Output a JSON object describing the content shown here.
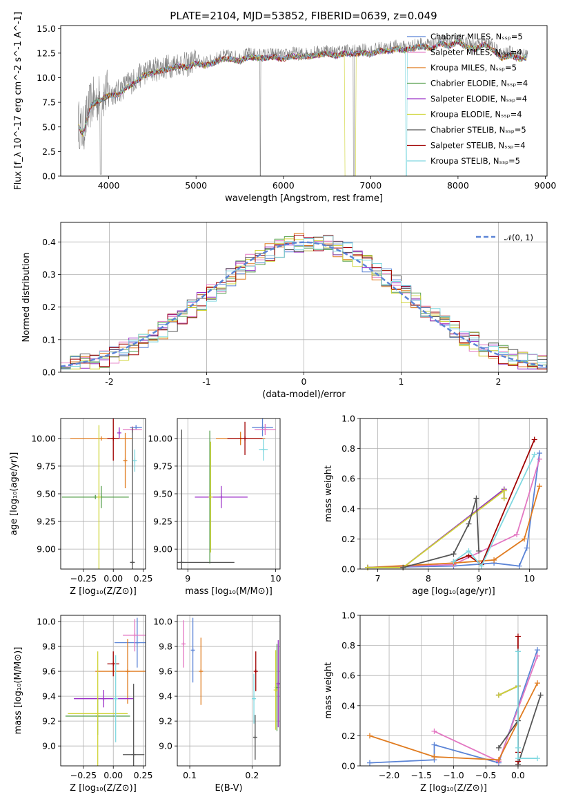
{
  "figure": {
    "title": "PLATE=2104, MJD=53852, FIBERID=0639, z=0.049"
  },
  "chart_data": [
    {
      "id": "spectrum",
      "type": "line",
      "xlabel": "wavelength [Angstrom, rest frame]",
      "ylabel": "Flux [f_λ 10^-17 erg cm^-2 s^-1 A^-1]",
      "xlim": [
        3450,
        9020
      ],
      "ylim": [
        0,
        15.3
      ],
      "xticks": [
        4000,
        5000,
        6000,
        7000,
        8000,
        9000
      ],
      "yticks": [
        0.0,
        2.5,
        5.0,
        7.5,
        10.0,
        12.5,
        15.0
      ],
      "ytick_labels": [
        "0.0",
        "2.5",
        "5.0",
        "7.5",
        "10.0",
        "12.5",
        "15.0"
      ],
      "grid": false,
      "legend_position": "right",
      "data_curve": {
        "description": "observed spectrum (grey)",
        "x": [
          3650,
          3700,
          3800,
          3900,
          4000,
          4100,
          4200,
          4300,
          4400,
          4500,
          4600,
          4700,
          4800,
          4900,
          5000,
          5100,
          5200,
          5300,
          5400,
          5500,
          5600,
          5700,
          5800,
          5900,
          6000,
          6100,
          6200,
          6300,
          6400,
          6500,
          6600,
          6700,
          6800,
          6900,
          7000,
          7100,
          7200,
          7300,
          7400,
          7500,
          7600,
          7700,
          7800,
          7900,
          8000,
          8100,
          8200,
          8300,
          8400,
          8500,
          8600,
          8700,
          8800
        ],
        "y": [
          5.5,
          4.5,
          7.5,
          8.0,
          8.5,
          8.5,
          9.3,
          9.8,
          10.5,
          10.8,
          11.0,
          11.2,
          11.5,
          11.3,
          11.8,
          11.5,
          11.8,
          12.2,
          12.2,
          12.0,
          12.4,
          12.3,
          12.3,
          12.4,
          12.2,
          12.5,
          12.4,
          12.5,
          12.6,
          12.8,
          12.5,
          12.8,
          12.7,
          12.8,
          12.7,
          13.0,
          13.0,
          13.2,
          13.1,
          13.3,
          13.5,
          13.2,
          13.8,
          13.5,
          14.0,
          13.4,
          13.2,
          13.7,
          13.1,
          12.3,
          12.6,
          12.2,
          12.4
        ]
      },
      "series": [
        {
          "name": "Chabrier MILES, N_SSP=5",
          "color": "#5b84d6"
        },
        {
          "name": "Salpeter MILES, N_SSP=4",
          "color": "#e377c2"
        },
        {
          "name": "Kroupa MILES, N_SSP=5",
          "color": "#e07b1f"
        },
        {
          "name": "Chabrier ELODIE, N_SSP=4",
          "color": "#59a14f"
        },
        {
          "name": "Salpeter ELODIE, N_SSP=4",
          "color": "#9b30c8"
        },
        {
          "name": "Kroupa ELODIE, N_SSP=4",
          "color": "#cfd436"
        },
        {
          "name": "Chabrier STELIB, N_SSP=5",
          "color": "#555555"
        },
        {
          "name": "Salpeter STELIB, N_SSP=4",
          "color": "#a00000"
        },
        {
          "name": "Kroupa STELIB, N_SSP=5",
          "color": "#7fd8e0"
        }
      ]
    },
    {
      "id": "residuals",
      "type": "line",
      "xlabel": "(data-model)/error",
      "ylabel": "Normed distribution",
      "xlim": [
        -2.5,
        2.5
      ],
      "ylim": [
        0,
        0.46
      ],
      "xticks": [
        -2,
        -1,
        0,
        1,
        2
      ],
      "yticks": [
        0.0,
        0.1,
        0.2,
        0.3,
        0.4
      ],
      "ytick_labels": [
        "0.0",
        "0.1",
        "0.2",
        "0.3",
        "0.4"
      ],
      "grid": true,
      "legend_position": "top-right",
      "legend_label": "𝒩(0, 1)",
      "normal_curve": {
        "mean": 0,
        "sigma": 1,
        "color": "#5b84d6"
      },
      "histogram_bins": {
        "x": [
          -2.5,
          -2.3,
          -2.1,
          -1.9,
          -1.7,
          -1.5,
          -1.3,
          -1.1,
          -0.9,
          -0.7,
          -0.5,
          -0.3,
          -0.1,
          0.1,
          0.3,
          0.5,
          0.7,
          0.9,
          1.1,
          1.3,
          1.5,
          1.7,
          1.9,
          2.1,
          2.3
        ],
        "y": [
          0.03,
          0.04,
          0.055,
          0.07,
          0.1,
          0.13,
          0.17,
          0.22,
          0.27,
          0.32,
          0.36,
          0.38,
          0.39,
          0.39,
          0.37,
          0.35,
          0.31,
          0.27,
          0.22,
          0.17,
          0.13,
          0.095,
          0.07,
          0.05,
          0.04
        ]
      }
    },
    {
      "id": "age-vs-Z",
      "type": "scatter",
      "xlabel": "Z [log₁₀(Z/Z⊙)]",
      "ylabel": "age  [log₁₀(age/yr)]",
      "xlim": [
        -0.44,
        0.27
      ],
      "ylim": [
        8.82,
        10.18
      ],
      "xticks": [
        -0.25,
        0.0,
        0.25
      ],
      "xtick_labels": [
        "−0.25",
        "0.00",
        "0.25"
      ],
      "yticks": [
        9.0,
        9.25,
        9.5,
        9.75,
        10.0
      ],
      "ytick_labels": [
        "9.00",
        "9.25",
        "9.50",
        "9.75",
        "10.00"
      ],
      "grid": true,
      "points": [
        {
          "x": 0.19,
          "y": 10.1,
          "xerr": 0.05,
          "yerr": 0.02,
          "color": "#5b84d6"
        },
        {
          "x": 0.16,
          "y": 10.08,
          "xerr": 0.08,
          "yerr": 0.03,
          "color": "#e377c2"
        },
        {
          "x": -0.1,
          "y": 10.0,
          "xerr": 0.26,
          "yerr": 0.0,
          "color": "#e07b1f"
        },
        {
          "x": 0.1,
          "y": 9.8,
          "xerr": 0.0,
          "yerr": 0.25,
          "color": "#e07b1f"
        },
        {
          "x": -0.15,
          "y": 9.47,
          "xerr": 0.28,
          "yerr": 0.0,
          "color": "#59a14f"
        },
        {
          "x": -0.1,
          "y": 9.47,
          "xerr": 0.0,
          "yerr": 0.1,
          "color": "#59a14f"
        },
        {
          "x": -0.12,
          "y": 9.47,
          "xerr": 0.0,
          "yerr": 0.65,
          "color": "#cfd436"
        },
        {
          "x": 0.0,
          "y": 10.0,
          "xerr": 0.05,
          "yerr": 0.2,
          "color": "#a00000"
        },
        {
          "x": 0.16,
          "y": 8.88,
          "xerr": 0.02,
          "yerr": 1.22,
          "color": "#555555"
        },
        {
          "x": 0.05,
          "y": 10.05,
          "xerr": 0.0,
          "yerr": 0.05,
          "color": "#9b30c8"
        },
        {
          "x": 0.18,
          "y": 9.8,
          "xerr": 0.0,
          "yerr": 0.1,
          "color": "#7fd8e0"
        }
      ]
    },
    {
      "id": "age-vs-mass",
      "type": "scatter",
      "xlabel": "mass [log₁₀(M/M⊙)]",
      "ylabel": "",
      "xlim": [
        8.88,
        10.05
      ],
      "ylim": [
        8.82,
        10.18
      ],
      "xticks": [
        9,
        10
      ],
      "yticks": [
        9.0,
        9.25,
        9.5,
        9.75,
        10.0
      ],
      "ytick_labels": [
        "9.00",
        "9.25",
        "9.50",
        "9.75",
        "10.00"
      ],
      "grid": true,
      "points": [
        {
          "x": 9.85,
          "y": 10.1,
          "xerr": 0.12,
          "yerr": 0.08,
          "color": "#5b84d6"
        },
        {
          "x": 9.88,
          "y": 10.08,
          "xerr": 0.12,
          "yerr": 0.05,
          "color": "#e377c2"
        },
        {
          "x": 9.6,
          "y": 10.0,
          "xerr": 0.28,
          "yerr": 0.06,
          "color": "#e07b1f"
        },
        {
          "x": 9.25,
          "y": 9.47,
          "xerr": 0.0,
          "yerr": 0.6,
          "color": "#59a14f"
        },
        {
          "x": 9.38,
          "y": 9.47,
          "xerr": 0.3,
          "yerr": 0.1,
          "color": "#9b30c8"
        },
        {
          "x": 9.26,
          "y": 9.47,
          "xerr": 0.0,
          "yerr": 0.5,
          "color": "#cfd436"
        },
        {
          "x": 8.93,
          "y": 8.88,
          "xerr": 0.6,
          "yerr": 1.2,
          "color": "#555555"
        },
        {
          "x": 9.65,
          "y": 10.0,
          "xerr": 0.2,
          "yerr": 0.15,
          "color": "#a00000"
        },
        {
          "x": 9.86,
          "y": 9.9,
          "xerr": 0.05,
          "yerr": 0.1,
          "color": "#7fd8e0"
        }
      ]
    },
    {
      "id": "massweight-vs-age",
      "type": "line",
      "xlabel": "age  [log₁₀(age/yr)]",
      "ylabel": "mass weight",
      "xlim": [
        6.65,
        10.35
      ],
      "ylim": [
        0,
        1.0
      ],
      "xticks": [
        7,
        8,
        9,
        10
      ],
      "yticks": [
        0.0,
        0.2,
        0.4,
        0.6,
        0.8,
        1.0
      ],
      "ytick_labels": [
        "0.0",
        "0.2",
        "0.4",
        "0.6",
        "0.8",
        "1.0"
      ],
      "grid": true,
      "series": [
        {
          "name": "Chabrier MILES",
          "color": "#5b84d6",
          "x": [
            6.8,
            8.5,
            9.3,
            9.8,
            9.95,
            10.2
          ],
          "y": [
            0.01,
            0.02,
            0.04,
            0.02,
            0.14,
            0.77
          ]
        },
        {
          "name": "Salpeter MILES",
          "color": "#e377c2",
          "x": [
            6.8,
            8.5,
            9.75,
            10.2
          ],
          "y": [
            0.01,
            0.03,
            0.23,
            0.73
          ]
        },
        {
          "name": "Kroupa MILES",
          "color": "#e07b1f",
          "x": [
            6.8,
            8.5,
            9.3,
            9.9,
            10.2
          ],
          "y": [
            0.01,
            0.04,
            0.06,
            0.2,
            0.55
          ]
        },
        {
          "name": "Chabrier ELODIE",
          "color": "#59a14f",
          "x": [
            6.8,
            7.5,
            9.5,
            9.5
          ],
          "y": [
            0.01,
            0.01,
            0.53,
            0.47
          ]
        },
        {
          "name": "Salpeter ELODIE",
          "color": "#9b30c8",
          "x": [
            6.8,
            7.5,
            9.5,
            9.5
          ],
          "y": [
            0.01,
            0.01,
            0.53,
            0.47
          ]
        },
        {
          "name": "Kroupa ELODIE",
          "color": "#cfd436",
          "x": [
            6.8,
            7.5,
            9.5,
            9.5
          ],
          "y": [
            0.01,
            0.01,
            0.52,
            0.47
          ]
        },
        {
          "name": "Chabrier STELIB",
          "color": "#555555",
          "x": [
            7.5,
            8.5,
            8.8,
            8.95,
            9.0
          ],
          "y": [
            0.01,
            0.1,
            0.3,
            0.47,
            0.12
          ]
        },
        {
          "name": "Salpeter STELIB",
          "color": "#a00000",
          "x": [
            8.5,
            8.8,
            9.05,
            10.1
          ],
          "y": [
            0.05,
            0.09,
            0.03,
            0.86
          ]
        },
        {
          "name": "Kroupa STELIB",
          "color": "#7fd8e0",
          "x": [
            8.5,
            8.8,
            9.05,
            10.1
          ],
          "y": [
            0.05,
            0.12,
            0.02,
            0.76
          ]
        }
      ]
    },
    {
      "id": "mass-vs-Z",
      "type": "scatter",
      "xlabel": "Z [log₁₀(Z/Z⊙)]",
      "ylabel": "mass [log₁₀(M/M⊙)]",
      "xlim": [
        -0.44,
        0.27
      ],
      "ylim": [
        8.84,
        10.05
      ],
      "xticks": [
        -0.25,
        0.0,
        0.25
      ],
      "xtick_labels": [
        "−0.25",
        "0.00",
        "0.25"
      ],
      "yticks": [
        9.0,
        9.2,
        9.4,
        9.6,
        9.8,
        10.0
      ],
      "ytick_labels": [
        "9.0",
        "9.2",
        "9.4",
        "9.6",
        "9.8",
        "10.0"
      ],
      "grid": true,
      "points": [
        {
          "x": 0.2,
          "y": 9.83,
          "xerr": 0.19,
          "yerr": 0.2,
          "color": "#5b84d6"
        },
        {
          "x": 0.18,
          "y": 9.89,
          "xerr": 0.1,
          "yerr": 0.13,
          "color": "#e377c2"
        },
        {
          "x": 0.12,
          "y": 9.6,
          "xerr": 0.27,
          "yerr": 0.26,
          "color": "#e07b1f"
        },
        {
          "x": -0.13,
          "y": 9.24,
          "xerr": 0.27,
          "yerr": 0.15,
          "color": "#59a14f"
        },
        {
          "x": -0.08,
          "y": 9.38,
          "xerr": 0.25,
          "yerr": 0.07,
          "color": "#9b30c8"
        },
        {
          "x": -0.13,
          "y": 9.26,
          "xerr": 0.25,
          "yerr": 0.5,
          "color": "#cfd436"
        },
        {
          "x": 0.17,
          "y": 8.93,
          "xerr": 0.09,
          "yerr": 0.57,
          "color": "#555555"
        },
        {
          "x": 0.0,
          "y": 9.66,
          "xerr": 0.05,
          "yerr": 0.1,
          "color": "#a00000"
        },
        {
          "x": 0.02,
          "y": 9.38,
          "xerr": 0.02,
          "yerr": 0.35,
          "color": "#7fd8e0"
        }
      ]
    },
    {
      "id": "mass-vs-ebv",
      "type": "scatter",
      "xlabel": "E(B-V)",
      "ylabel": "",
      "xlim": [
        0.08,
        0.245
      ],
      "ylim": [
        8.84,
        10.05
      ],
      "xticks": [
        0.1,
        0.2
      ],
      "xtick_labels": [
        "0.1",
        "0.2"
      ],
      "yticks": [
        9.0,
        9.2,
        9.4,
        9.6,
        9.8,
        10.0
      ],
      "ytick_labels": [
        "9.0",
        "9.2",
        "9.4",
        "9.6",
        "9.8",
        "10.0"
      ],
      "grid": true,
      "points": [
        {
          "x": 0.105,
          "y": 9.77,
          "xerr": 0.0,
          "yerr": 0.26,
          "color": "#5b84d6"
        },
        {
          "x": 0.09,
          "y": 9.82,
          "xerr": 0.0,
          "yerr": 0.19,
          "color": "#e377c2"
        },
        {
          "x": 0.118,
          "y": 9.6,
          "xerr": 0.0,
          "yerr": 0.27,
          "color": "#e07b1f"
        },
        {
          "x": 0.24,
          "y": 9.47,
          "xerr": 0.0,
          "yerr": 0.35,
          "color": "#59a14f"
        },
        {
          "x": 0.242,
          "y": 9.5,
          "xerr": 0.0,
          "yerr": 0.35,
          "color": "#9b30c8"
        },
        {
          "x": 0.238,
          "y": 9.45,
          "xerr": 0.0,
          "yerr": 0.32,
          "color": "#cfd436"
        },
        {
          "x": 0.205,
          "y": 9.07,
          "xerr": 0.0,
          "yerr": 0.18,
          "color": "#555555"
        },
        {
          "x": 0.206,
          "y": 9.6,
          "xerr": 0.0,
          "yerr": 0.16,
          "color": "#a00000"
        },
        {
          "x": 0.203,
          "y": 9.38,
          "xerr": 0.0,
          "yerr": 0.2,
          "color": "#7fd8e0"
        }
      ]
    },
    {
      "id": "massweight-vs-Z",
      "type": "line",
      "xlabel": "Z [log₁₀(Z/Z⊙)]",
      "ylabel": "mass weight",
      "xlim": [
        -2.45,
        0.45
      ],
      "ylim": [
        0,
        1.0
      ],
      "xticks": [
        -2.0,
        -1.5,
        -1.0,
        -0.5,
        0.0
      ],
      "xtick_labels": [
        "−2.0",
        "−1.5",
        "−1.0",
        "−0.5",
        "0.0"
      ],
      "yticks": [
        0.0,
        0.2,
        0.4,
        0.6,
        0.8,
        1.0
      ],
      "ytick_labels": [
        "0.0",
        "0.2",
        "0.4",
        "0.6",
        "0.8",
        "1.0"
      ],
      "grid": true,
      "series": [
        {
          "name": "Chabrier MILES",
          "color": "#5b84d6",
          "x": [
            -2.3,
            -1.3,
            -1.3,
            -0.3,
            0.3
          ],
          "y": [
            0.02,
            0.04,
            0.14,
            0.02,
            0.77
          ]
        },
        {
          "name": "Salpeter MILES",
          "color": "#e377c2",
          "x": [
            -1.3,
            -0.3,
            0.3
          ],
          "y": [
            0.23,
            0.03,
            0.73
          ]
        },
        {
          "name": "Kroupa MILES",
          "color": "#e07b1f",
          "x": [
            -2.3,
            -1.3,
            -0.3,
            0.3
          ],
          "y": [
            0.2,
            0.06,
            0.04,
            0.55
          ]
        },
        {
          "name": "Chabrier ELODIE",
          "color": "#59a14f",
          "x": [
            -0.3,
            0.0
          ],
          "y": [
            0.47,
            0.53
          ]
        },
        {
          "name": "Salpeter ELODIE",
          "color": "#9b30c8",
          "x": [
            -0.3,
            0.0
          ],
          "y": [
            0.47,
            0.53
          ]
        },
        {
          "name": "Kroupa ELODIE",
          "color": "#cfd436",
          "x": [
            -0.3,
            0.0
          ],
          "y": [
            0.47,
            0.53
          ]
        },
        {
          "name": "Chabrier STELIB",
          "color": "#555555",
          "x": [
            -0.3,
            0.0,
            0.0,
            0.35
          ],
          "y": [
            0.12,
            0.3,
            0.01,
            0.47
          ]
        },
        {
          "name": "Salpeter STELIB",
          "color": "#a00000",
          "x": [
            0.0,
            0.0,
            0.0
          ],
          "y": [
            0.86,
            0.09,
            0.03
          ]
        },
        {
          "name": "Kroupa STELIB",
          "color": "#7fd8e0",
          "x": [
            0.0,
            0.0,
            0.0,
            0.3
          ],
          "y": [
            0.76,
            0.12,
            0.05,
            0.05
          ]
        }
      ]
    }
  ]
}
